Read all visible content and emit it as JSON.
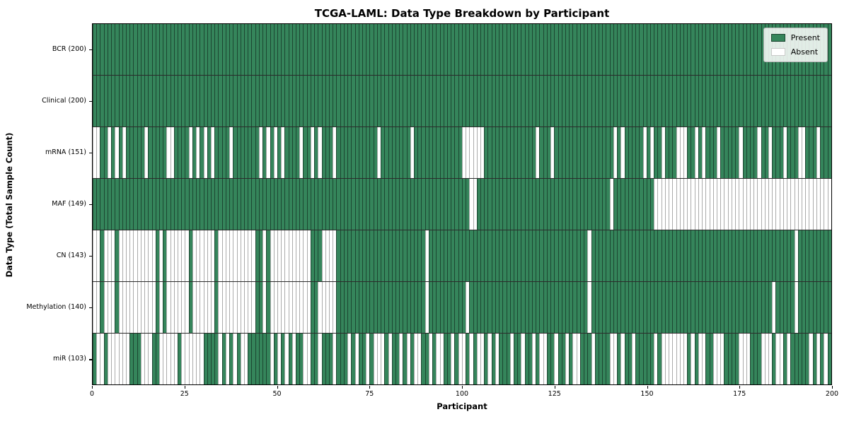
{
  "chart_data": {
    "type": "heatmap",
    "title": "TCGA-LAML: Data Type Breakdown by Participant",
    "xlabel": "Participant",
    "ylabel": "Data Type (Total Sample Count)",
    "participants": 200,
    "x_ticks": [
      0,
      25,
      50,
      75,
      100,
      125,
      150,
      175,
      200
    ],
    "grid": "row separators only",
    "legend": {
      "position": "upper right",
      "present_label": "Present",
      "absent_label": "Absent"
    },
    "colors": {
      "present": "#35855B",
      "present_edge": "#1C4631",
      "absent": "#FFFFFF",
      "absent_edge": "#ABABAB",
      "frame": "#000000"
    },
    "rows": [
      {
        "name": "BCR",
        "label": "BCR (200)",
        "present_count": 200,
        "absent": []
      },
      {
        "name": "Clinical",
        "label": "Clinical (200)",
        "present_count": 200,
        "absent": []
      },
      {
        "name": "mRNA",
        "label": "mRNA (151)",
        "present_count": 151,
        "absent": [
          1,
          2,
          5,
          7,
          9,
          15,
          21,
          22,
          27,
          29,
          31,
          33,
          38,
          46,
          48,
          50,
          52,
          57,
          60,
          62,
          66,
          78,
          87,
          101,
          102,
          103,
          104,
          105,
          106,
          121,
          125,
          142,
          144,
          150,
          152,
          155,
          159,
          160,
          161,
          164,
          166,
          170,
          176,
          181,
          184,
          188,
          192,
          193,
          197
        ]
      },
      {
        "name": "MAF",
        "label": "MAF (149)",
        "present_count": 149,
        "absent": [
          103,
          104,
          141,
          153,
          154,
          155,
          156,
          157,
          158,
          159,
          160,
          161,
          162,
          163,
          164,
          165,
          166,
          167,
          168,
          169,
          170,
          171,
          172,
          173,
          174,
          175,
          176,
          177,
          178,
          179,
          180,
          181,
          182,
          183,
          184,
          185,
          186,
          187,
          188,
          189,
          190,
          191,
          192,
          193,
          194,
          195,
          196,
          197,
          198,
          199,
          200
        ]
      },
      {
        "name": "CN",
        "label": "CN (143)",
        "present_count": 143,
        "absent": [
          1,
          2,
          4,
          5,
          6,
          8,
          9,
          10,
          11,
          12,
          13,
          14,
          15,
          16,
          17,
          19,
          21,
          22,
          23,
          24,
          25,
          26,
          28,
          29,
          30,
          31,
          32,
          33,
          35,
          36,
          37,
          38,
          39,
          40,
          41,
          42,
          43,
          44,
          47,
          49,
          50,
          51,
          52,
          53,
          54,
          55,
          56,
          57,
          58,
          59,
          63,
          64,
          65,
          66,
          91,
          135,
          191
        ]
      },
      {
        "name": "Methylation",
        "label": "Methylation (140)",
        "present_count": 140,
        "absent": [
          1,
          2,
          4,
          5,
          6,
          8,
          9,
          10,
          11,
          12,
          13,
          14,
          15,
          16,
          17,
          19,
          21,
          22,
          23,
          24,
          25,
          26,
          28,
          29,
          30,
          31,
          32,
          33,
          35,
          36,
          37,
          38,
          39,
          40,
          41,
          42,
          43,
          44,
          47,
          49,
          50,
          51,
          52,
          53,
          54,
          55,
          56,
          57,
          58,
          59,
          62,
          63,
          64,
          65,
          66,
          91,
          102,
          135,
          185,
          191
        ]
      },
      {
        "name": "miR",
        "label": "miR (103)",
        "present_count": 103,
        "absent": [
          2,
          3,
          5,
          6,
          7,
          8,
          9,
          10,
          14,
          15,
          16,
          19,
          20,
          21,
          22,
          23,
          25,
          26,
          27,
          28,
          29,
          30,
          35,
          37,
          39,
          41,
          42,
          49,
          51,
          53,
          55,
          58,
          59,
          62,
          66,
          70,
          72,
          75,
          77,
          78,
          79,
          81,
          84,
          86,
          88,
          89,
          92,
          94,
          95,
          98,
          100,
          101,
          103,
          105,
          106,
          108,
          110,
          114,
          117,
          120,
          122,
          123,
          126,
          129,
          131,
          132,
          136,
          141,
          142,
          144,
          147,
          153,
          155,
          156,
          157,
          158,
          159,
          160,
          161,
          163,
          165,
          166,
          169,
          170,
          171,
          176,
          177,
          178,
          182,
          183,
          184,
          186,
          187,
          189,
          195,
          197,
          199
        ]
      }
    ]
  }
}
